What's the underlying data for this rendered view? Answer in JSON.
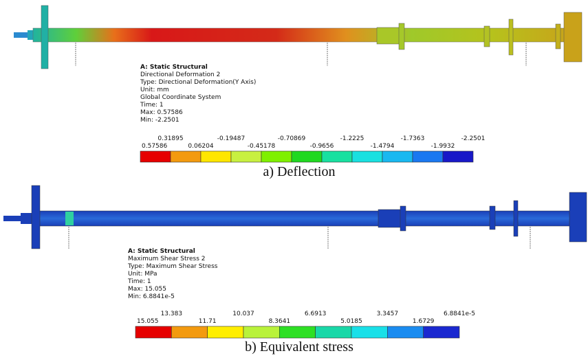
{
  "panels": [
    {
      "header": {
        "title": "A: Static Structural",
        "lines": [
          "Directional Deformation 2",
          "Type: Directional Deformation(Y Axis)",
          "Unit: mm",
          "Global Coordinate System",
          "Time: 1",
          "Max: 0.57586",
          "Min: -2.2501"
        ]
      },
      "legend": {
        "labels": [
          "0.57586",
          "0.31895",
          "0.06204",
          "-0.19487",
          "-0.45178",
          "-0.70869",
          "-0.9656",
          "-1.2225",
          "-1.4794",
          "-1.7363",
          "-1.9932",
          "-2.2501"
        ]
      },
      "caption": "a) Deflection"
    },
    {
      "header": {
        "title": "A: Static Structural",
        "lines": [
          "Maximum Shear Stress 2",
          "Type: Maximum Shear Stress",
          "Unit: MPa",
          "Time: 1",
          "Max: 15.055",
          "Min: 6.8841e-5"
        ]
      },
      "legend": {
        "labels": [
          "15.055",
          "13.383",
          "11.71",
          "10.037",
          "8.3641",
          "6.6913",
          "5.0185",
          "3.3457",
          "1.6729",
          "6.8841e-5"
        ]
      },
      "caption": "b) Equivalent stress"
    }
  ]
}
